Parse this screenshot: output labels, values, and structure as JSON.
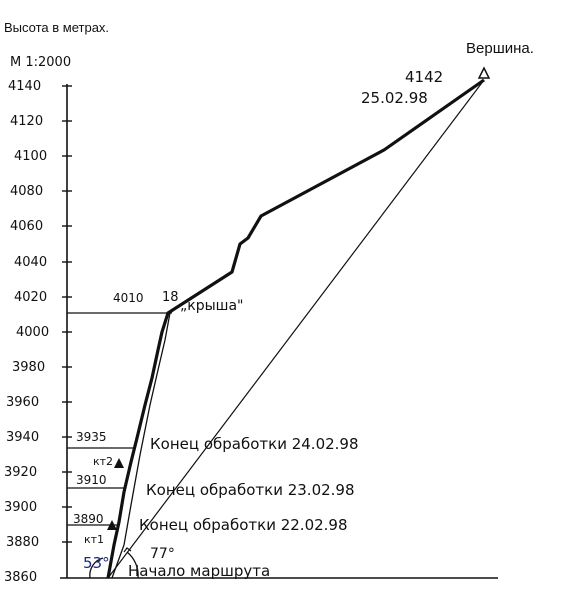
{
  "header": {
    "caption": "Высота в метрах."
  },
  "summit_label": "Вершина.",
  "scale_label": "М 1:2000",
  "ticks": [
    "4140",
    "4120",
    "4100",
    "4080",
    "4060",
    "4040",
    "4020",
    "4000",
    "3980",
    "3960",
    "3940",
    "3920",
    "3900",
    "3880",
    "3860"
  ],
  "summit": {
    "height": "4142",
    "date": "25.02.98"
  },
  "roof": {
    "height": "4010",
    "point": "18",
    "name": "„крыша\""
  },
  "levels": [
    {
      "height": "3935",
      "text": "Конец обработки 24.02.98"
    },
    {
      "height": "3910",
      "text": "Конец обработки 23.02.98"
    },
    {
      "height": "3890",
      "text": "Конец обработки 22.02.98"
    }
  ],
  "camps": [
    "кт2",
    "кт1"
  ],
  "angles": {
    "left": "53°",
    "right": "77°"
  },
  "start_label": "Начало маршрута",
  "colors": {
    "ink": "#111111",
    "angle_blue": "#1a2a8a"
  }
}
